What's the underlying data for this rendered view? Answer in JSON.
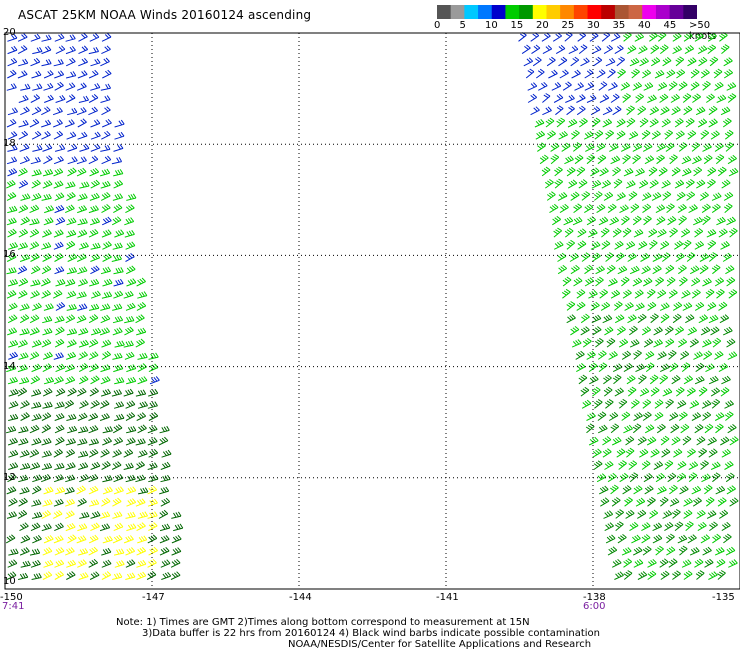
{
  "title": "ASCAT 25KM NOAA Winds 20160124 ascending",
  "colorbar": {
    "labels": [
      "0",
      "5",
      "10",
      "15",
      "20",
      "25",
      "30",
      "35",
      "40",
      "45",
      ">50 knots"
    ],
    "colors": [
      "#555555",
      "#9a9a9a",
      "#00c8ff",
      "#0078ff",
      "#0000cc",
      "#00cc00",
      "#009900",
      "#ffff00",
      "#ffcc00",
      "#ff8800",
      "#ff4400",
      "#ff0000",
      "#bb0000",
      "#aa5533",
      "#cc6644",
      "#ee00ee",
      "#aa00cc",
      "#660099",
      "#330066"
    ]
  },
  "map": {
    "lon_range": [
      -150,
      -135
    ],
    "lat_range": [
      10,
      20
    ],
    "lon_labels": [
      "-150",
      "-147",
      "-144",
      "-141",
      "-138",
      "-135"
    ],
    "lon_values": [
      -150,
      -147,
      -144,
      -141,
      -138,
      -135
    ],
    "lat_labels": [
      "20",
      "18",
      "16",
      "14",
      "12",
      "10"
    ],
    "lat_values": [
      20,
      18,
      16,
      14,
      12,
      10
    ],
    "grid_lon": [
      -147,
      -144,
      -141,
      -138
    ],
    "grid_lat": [
      18,
      16,
      14,
      12
    ]
  },
  "times": [
    {
      "label": "7:41",
      "lon": -150
    },
    {
      "label": "6:00",
      "lon": -138
    }
  ],
  "swaths": [
    {
      "name": "west",
      "top_lon": [
        -150,
        -147.9
      ],
      "bottom_lon": [
        -150,
        -146.2
      ],
      "colors": {
        "north": "#0022cc",
        "mid": "#00cc00",
        "south": "#006600",
        "yellow": "#ffff00"
      }
    },
    {
      "name": "east",
      "top_lon": [
        -139.6,
        -135
      ],
      "bottom_lon": [
        -137.6,
        -135
      ],
      "colors": {
        "north": "#0022cc",
        "mid": "#00cc00",
        "south": "#008800"
      }
    }
  ],
  "notes": [
    "Note: 1) Times are GMT 2)Times along bottom correspond to measurement at 15N",
    "3)Data buffer is 22 hrs from 20160124 4) Black wind barbs indicate possible contamination",
    "NOAA/NESDIS/Center for Satellite Applications and Research"
  ],
  "colors": {
    "grid": "#000000",
    "frame": "#000000",
    "time_text": "#7a1fa0"
  }
}
